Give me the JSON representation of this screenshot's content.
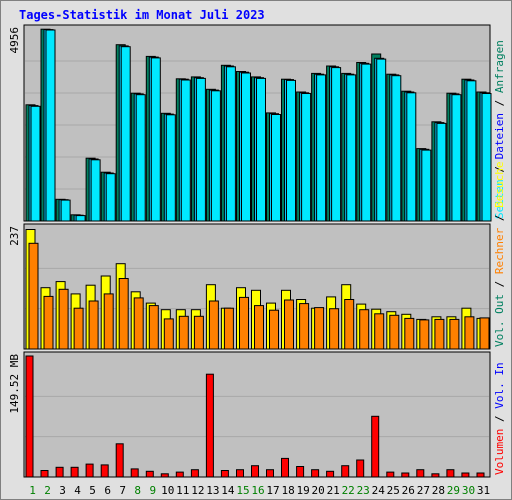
{
  "title": "Tages-Statistik im Monat Juli 2023",
  "colors": {
    "background": "#e0e0e0",
    "plot_bg": "#c0c0c0",
    "title": "#0000ff",
    "grid": "#a0a0a0",
    "anfragen": "#008060",
    "dateien": "#00ccff",
    "seiten": "#00e8ff",
    "besuche": "#ffff00",
    "rechner": "#ff8000",
    "volumen": "#ff0000",
    "vol_in": "#0000ff",
    "vol_out": "#008060",
    "weekend_label": "#008000"
  },
  "right_labels": {
    "top": [
      {
        "text": "Anfragen",
        "color_key": "anfragen"
      },
      {
        "text": "Dateien",
        "color_key": "vol_in"
      },
      {
        "text": "Seiten",
        "color_key": "seiten"
      }
    ],
    "middle": [
      {
        "text": "Besuche",
        "color_key": "besuche"
      },
      {
        "text": "Rechner",
        "color_key": "rechner"
      },
      {
        "text": "Vol. Out",
        "color_key": "vol_out"
      }
    ],
    "bottom": [
      {
        "text": "Vol. In",
        "color_key": "vol_in"
      },
      {
        "text": "Volumen",
        "color_key": "volumen"
      }
    ]
  },
  "chart_data": [
    {
      "type": "bar",
      "panel": "top",
      "y_label": "4956",
      "ylim": [
        0,
        4956
      ],
      "x": [
        1,
        2,
        3,
        4,
        5,
        6,
        7,
        8,
        9,
        10,
        11,
        12,
        13,
        14,
        15,
        16,
        17,
        18,
        19,
        20,
        21,
        22,
        23,
        24,
        25,
        26,
        27,
        28,
        29,
        30,
        31
      ],
      "series": [
        {
          "name": "Anfragen",
          "color_key": "anfragen",
          "values": [
            3000,
            4950,
            560,
            160,
            1620,
            1260,
            4550,
            3300,
            4250,
            2780,
            3670,
            3720,
            3400,
            4020,
            3860,
            3720,
            2790,
            3660,
            3330,
            3810,
            4000,
            3810,
            4090,
            4310,
            3790,
            3350,
            1870,
            2560,
            3300,
            3660,
            3330
          ]
        },
        {
          "name": "Dateien",
          "color_key": "dateien",
          "values": [
            2980,
            4940,
            550,
            150,
            1600,
            1240,
            4520,
            3280,
            4230,
            2760,
            3660,
            3700,
            3380,
            4000,
            3840,
            3700,
            2770,
            3650,
            3310,
            3790,
            3980,
            3790,
            4070,
            4200,
            3770,
            3330,
            1850,
            2540,
            3280,
            3640,
            3310
          ]
        },
        {
          "name": "Seiten",
          "color_key": "seiten",
          "values": [
            2960,
            4930,
            540,
            140,
            1580,
            1220,
            4500,
            3260,
            4210,
            2740,
            3640,
            3680,
            3360,
            3980,
            3820,
            3680,
            2750,
            3630,
            3290,
            3770,
            3960,
            3770,
            4050,
            4180,
            3750,
            3310,
            1830,
            2520,
            3260,
            3620,
            3290
          ]
        }
      ]
    },
    {
      "type": "bar",
      "panel": "middle",
      "y_label": "237",
      "ylim": [
        0,
        237
      ],
      "x": [
        1,
        2,
        3,
        4,
        5,
        6,
        7,
        8,
        9,
        10,
        11,
        12,
        13,
        14,
        15,
        16,
        17,
        18,
        19,
        20,
        21,
        22,
        23,
        24,
        25,
        26,
        27,
        28,
        29,
        30,
        31
      ],
      "series": [
        {
          "name": "Besuche",
          "color_key": "besuche",
          "values": [
            234,
            120,
            132,
            108,
            125,
            143,
            167,
            112,
            90,
            77,
            77,
            77,
            126,
            80,
            120,
            115,
            90,
            115,
            97,
            80,
            102,
            126,
            88,
            78,
            73,
            68,
            58,
            63,
            63,
            80,
            60
          ]
        },
        {
          "name": "Rechner",
          "color_key": "rechner",
          "values": [
            207,
            103,
            117,
            80,
            94,
            108,
            138,
            100,
            85,
            59,
            64,
            64,
            94,
            80,
            101,
            85,
            76,
            96,
            89,
            81,
            79,
            97,
            77,
            69,
            66,
            60,
            57,
            58,
            58,
            63,
            61
          ]
        }
      ]
    },
    {
      "type": "bar",
      "panel": "bottom",
      "y_label": "149.52 MB",
      "ylim": [
        0,
        149.52
      ],
      "x": [
        1,
        2,
        3,
        4,
        5,
        6,
        7,
        8,
        9,
        10,
        11,
        12,
        13,
        14,
        15,
        16,
        17,
        18,
        19,
        20,
        21,
        22,
        23,
        24,
        25,
        26,
        27,
        28,
        29,
        30,
        31
      ],
      "series": [
        {
          "name": "Volumen",
          "color_key": "volumen",
          "values": [
            149.5,
            8,
            12,
            12,
            16,
            15,
            41,
            10,
            7,
            4,
            6,
            9,
            127,
            8,
            9,
            14,
            9,
            23,
            13,
            9,
            7,
            14,
            21,
            75,
            6,
            5,
            9,
            4,
            9,
            5,
            5
          ]
        }
      ]
    }
  ],
  "x_labels": [
    "1",
    "2",
    "3",
    "4",
    "5",
    "6",
    "7",
    "8",
    "9",
    "10",
    "11",
    "12",
    "13",
    "14",
    "15",
    "16",
    "17",
    "18",
    "19",
    "20",
    "21",
    "22",
    "23",
    "24",
    "25",
    "26",
    "27",
    "28",
    "29",
    "30",
    "31"
  ],
  "weekend_days": [
    1,
    2,
    8,
    9,
    15,
    16,
    22,
    23,
    29,
    30
  ]
}
